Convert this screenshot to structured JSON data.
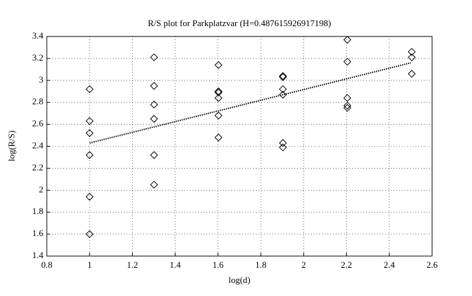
{
  "chart_data": {
    "type": "scatter",
    "title": "R/S plot for Parkplatzvar (H=0.487615926917198)",
    "xlabel": "log(d)",
    "ylabel": "log(R/S)",
    "xlim": [
      0.8,
      2.6
    ],
    "ylim": [
      1.4,
      3.4
    ],
    "xticks": [
      0.8,
      1,
      1.2,
      1.4,
      1.6,
      1.8,
      2,
      2.2,
      2.4,
      2.6
    ],
    "yticks": [
      1.4,
      1.6,
      1.8,
      2,
      2.2,
      2.4,
      2.6,
      2.8,
      3,
      3.2,
      3.4
    ],
    "grid": true,
    "series": [
      {
        "type": "scatter",
        "marker": "diamond",
        "color": "#000000",
        "x": [
          1,
          1,
          1,
          1,
          1,
          1,
          1.301,
          1.301,
          1.301,
          1.301,
          1.301,
          1.301,
          1.602,
          1.602,
          1.602,
          1.602,
          1.602,
          1.602,
          1.903,
          1.903,
          1.903,
          1.903,
          1.903,
          1.903,
          2.204,
          2.204,
          2.204,
          2.204,
          2.204,
          2.505,
          2.505,
          2.505
        ],
        "values": [
          2.92,
          2.63,
          2.52,
          2.32,
          1.94,
          1.6,
          3.21,
          2.95,
          2.78,
          2.65,
          2.32,
          2.05,
          3.14,
          2.9,
          2.89,
          2.84,
          2.68,
          2.48,
          3.04,
          3.03,
          2.92,
          2.87,
          2.43,
          2.39,
          3.37,
          3.17,
          2.84,
          2.77,
          2.75,
          3.26,
          3.21,
          3.06
        ]
      },
      {
        "type": "line",
        "linestyle": "dotted",
        "color": "#000000",
        "x": [
          1,
          2.5
        ],
        "values": [
          2.43,
          3.16
        ]
      }
    ]
  }
}
